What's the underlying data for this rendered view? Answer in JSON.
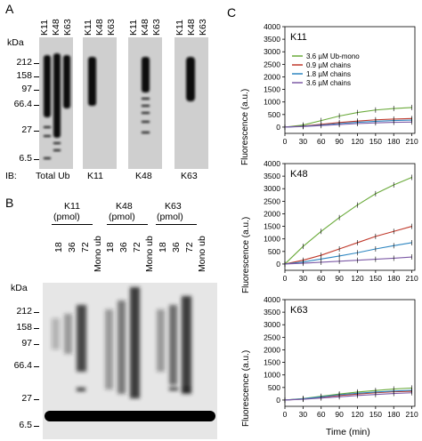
{
  "panel_a": {
    "letter": "A",
    "kda_label": "kDa",
    "markers": [
      "212",
      "158",
      "97",
      "66.4",
      "27",
      "6.5"
    ],
    "lane_labels": [
      "K11",
      "K48",
      "K63",
      "K11",
      "K48",
      "K63",
      "K11",
      "K48",
      "K63",
      "K11",
      "K48",
      "K63"
    ],
    "ib_label": "IB:",
    "ib_groups": [
      "Total Ub",
      "K11",
      "K48",
      "K63"
    ]
  },
  "panel_b": {
    "letter": "B",
    "kda_label": "kDa",
    "markers": [
      "212",
      "158",
      "97",
      "66.4",
      "27",
      "6.5"
    ],
    "groups": [
      {
        "name": "K11",
        "unit": "(pmol)"
      },
      {
        "name": "K48",
        "unit": "(pmol)"
      },
      {
        "name": "K63",
        "unit": "(pmol)"
      }
    ],
    "lane_labels": [
      "18",
      "36",
      "72",
      "Mono ub",
      "18",
      "36",
      "72",
      "Mono ub",
      "18",
      "36",
      "72",
      "Mono ub"
    ]
  },
  "panel_c": {
    "letter": "C",
    "ylabel": "Fluorescence (a.u.)",
    "xlabel": "Time (min)",
    "legend": [
      "3.6 µM Ub-mono",
      "0.9 µM chains",
      "1.8 µM chains",
      "3.6 µM chains"
    ],
    "series_colors": [
      "#6aaa3a",
      "#c0392b",
      "#2e86c1",
      "#7d5aa6"
    ],
    "y_ticks": [
      "0",
      "500",
      "1000",
      "1500",
      "2000",
      "2500",
      "3000",
      "3500",
      "4000"
    ],
    "x_ticks": [
      "0",
      "30",
      "60",
      "90",
      "120",
      "150",
      "180",
      "210"
    ]
  },
  "chart_data": [
    {
      "type": "line",
      "title": "K11",
      "xlabel": "",
      "ylabel": "Fluorescence (a.u.)",
      "xlim": [
        0,
        215
      ],
      "ylim": [
        -250,
        4000
      ],
      "x": [
        0,
        30,
        60,
        90,
        120,
        150,
        180,
        210
      ],
      "series": [
        {
          "name": "3.6 µM Ub-mono",
          "values": [
            0,
            80,
            260,
            440,
            580,
            680,
            740,
            780
          ]
        },
        {
          "name": "0.9 µM chains",
          "values": [
            0,
            40,
            110,
            180,
            240,
            290,
            320,
            340
          ]
        },
        {
          "name": "1.8 µM chains",
          "values": [
            0,
            30,
            80,
            140,
            190,
            230,
            260,
            280
          ]
        },
        {
          "name": "3.6 µM chains",
          "values": [
            0,
            20,
            60,
            100,
            140,
            170,
            190,
            200
          ]
        }
      ]
    },
    {
      "type": "line",
      "title": "K48",
      "xlabel": "",
      "ylabel": "Fluorescence (a.u.)",
      "xlim": [
        0,
        215
      ],
      "ylim": [
        -250,
        4000
      ],
      "x": [
        0,
        30,
        60,
        90,
        120,
        150,
        180,
        210
      ],
      "series": [
        {
          "name": "3.6 µM Ub-mono",
          "values": [
            0,
            700,
            1300,
            1850,
            2350,
            2800,
            3150,
            3450
          ]
        },
        {
          "name": "0.9 µM chains",
          "values": [
            0,
            150,
            350,
            600,
            850,
            1100,
            1300,
            1500
          ]
        },
        {
          "name": "1.8 µM chains",
          "values": [
            0,
            80,
            200,
            320,
            450,
            600,
            730,
            850
          ]
        },
        {
          "name": "3.6 µM chains",
          "values": [
            0,
            30,
            70,
            110,
            150,
            190,
            230,
            280
          ]
        }
      ]
    },
    {
      "type": "line",
      "title": "K63",
      "xlabel": "Time (min)",
      "ylabel": "Fluorescence (a.u.)",
      "xlim": [
        0,
        215
      ],
      "ylim": [
        -250,
        4000
      ],
      "x": [
        0,
        30,
        60,
        90,
        120,
        150,
        180,
        210
      ],
      "series": [
        {
          "name": "3.6 µM Ub-mono",
          "values": [
            0,
            60,
            150,
            240,
            320,
            380,
            440,
            480
          ]
        },
        {
          "name": "0.9 µM chains",
          "values": [
            0,
            40,
            110,
            180,
            240,
            290,
            330,
            350
          ]
        },
        {
          "name": "1.8 µM chains",
          "values": [
            0,
            50,
            130,
            210,
            270,
            320,
            360,
            390
          ]
        },
        {
          "name": "3.6 µM chains",
          "values": [
            0,
            30,
            80,
            130,
            180,
            220,
            260,
            290
          ]
        }
      ]
    }
  ]
}
